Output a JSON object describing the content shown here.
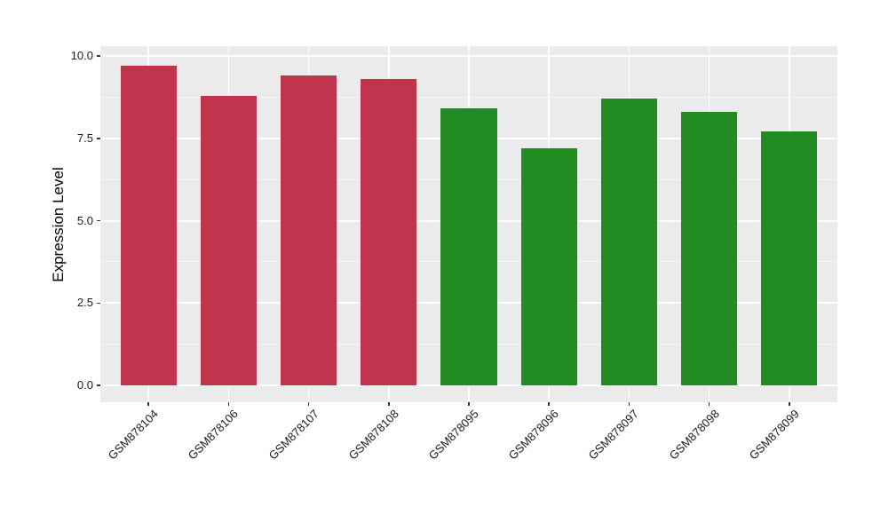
{
  "figure": {
    "background": "#FFFFFF",
    "panel_background": "#EBEBEB",
    "grid_color": "#FFFFFF",
    "tick_color": "#333333",
    "text_color": "#1A1A1A"
  },
  "chart_data": {
    "type": "bar",
    "title": "",
    "xlabel": "",
    "ylabel": "Expression Level",
    "categories": [
      "GSM878104",
      "GSM878106",
      "GSM878107",
      "GSM878108",
      "GSM878095",
      "GSM878096",
      "GSM878097",
      "GSM878098",
      "GSM878099"
    ],
    "values": [
      9.7,
      8.8,
      9.4,
      9.3,
      8.4,
      7.2,
      8.7,
      8.3,
      7.7
    ],
    "bar_colors": [
      "#C1344E",
      "#C1344E",
      "#C1344E",
      "#C1344E",
      "#228B22",
      "#228B22",
      "#228B22",
      "#228B22",
      "#228B22"
    ],
    "color_groups": [
      {
        "color": "#C1344E",
        "samples": [
          "GSM878104",
          "GSM878106",
          "GSM878107",
          "GSM878108"
        ]
      },
      {
        "color": "#228B22",
        "samples": [
          "GSM878095",
          "GSM878096",
          "GSM878097",
          "GSM878098",
          "GSM878099"
        ]
      }
    ],
    "yticks": [
      0.0,
      2.5,
      5.0,
      7.5,
      10.0
    ],
    "ytick_labels": [
      "0.0",
      "2.5",
      "5.0",
      "7.5",
      "10.0"
    ],
    "yticks_minor": [
      1.25,
      3.75,
      6.25,
      8.75
    ],
    "ylim": [
      -0.51,
      10.3
    ],
    "bar_rel_width": 0.7,
    "x_expand": 0.6,
    "grid": true,
    "legend": false
  }
}
